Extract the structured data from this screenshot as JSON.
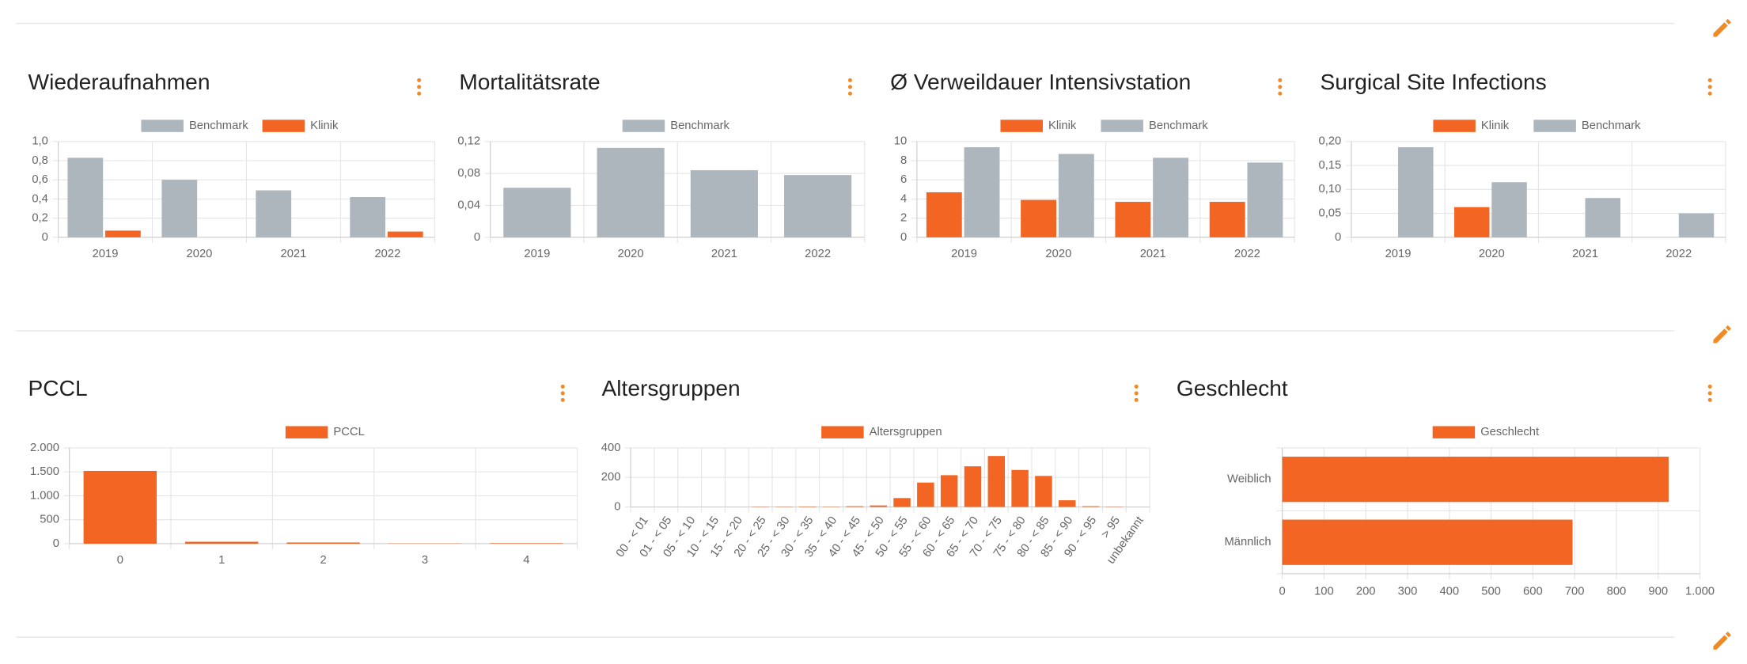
{
  "chart_data": [
    {
      "type": "bar",
      "title": "Wiederaufnahmen",
      "categories": [
        "2019",
        "2020",
        "2021",
        "2022"
      ],
      "series": [
        {
          "name": "Benchmark",
          "color": "#adb5bd",
          "values": [
            0.83,
            0.6,
            0.49,
            0.42
          ]
        },
        {
          "name": "Klinik",
          "color": "#f26522",
          "values": [
            0.07,
            0,
            0,
            0.06
          ]
        }
      ],
      "ylim": [
        0,
        1
      ],
      "yticks": [
        0,
        {
          "value": 0.2,
          "label": "0,2"
        },
        {
          "value": 0.4,
          "label": "0,4"
        },
        {
          "value": 0.6,
          "label": "0,6"
        },
        {
          "value": 0.8,
          "label": "0,8"
        },
        {
          "value": 1,
          "label": "1,0"
        }
      ],
      "grid": true
    },
    {
      "type": "bar",
      "title": "Mortalitätsrate",
      "categories": [
        "2019",
        "2020",
        "2021",
        "2022"
      ],
      "series": [
        {
          "name": "Benchmark",
          "color": "#adb5bd",
          "values": [
            0.062,
            0.112,
            0.084,
            0.078
          ]
        }
      ],
      "ylim": [
        0,
        0.12
      ],
      "yticks": [
        0,
        {
          "value": 0.04,
          "label": "0,04"
        },
        {
          "value": 0.08,
          "label": "0,08"
        },
        {
          "value": 0.12,
          "label": "0,12"
        }
      ],
      "grid": true
    },
    {
      "type": "bar",
      "title": "Ø Verweildauer Intensivstation",
      "categories": [
        "2019",
        "2020",
        "2021",
        "2022"
      ],
      "series": [
        {
          "name": "Klinik",
          "color": "#f26522",
          "values": [
            4.7,
            3.9,
            3.7,
            3.7
          ]
        },
        {
          "name": "Benchmark",
          "color": "#adb5bd",
          "values": [
            9.4,
            8.7,
            8.3,
            7.8
          ]
        }
      ],
      "ylim": [
        0,
        10
      ],
      "yticks": [
        0,
        2,
        4,
        6,
        8,
        10
      ],
      "grid": true
    },
    {
      "type": "bar",
      "title": "Surgical Site Infections",
      "categories": [
        "2019",
        "2020",
        "2021",
        "2022"
      ],
      "series": [
        {
          "name": "Klinik",
          "color": "#f26522",
          "values": [
            0,
            0.063,
            0,
            0
          ]
        },
        {
          "name": "Benchmark",
          "color": "#adb5bd",
          "values": [
            0.188,
            0.115,
            0.082,
            0.05
          ]
        }
      ],
      "ylim": [
        0,
        0.2
      ],
      "yticks": [
        0,
        {
          "value": 0.05,
          "label": "0,05"
        },
        {
          "value": 0.1,
          "label": "0,10"
        },
        {
          "value": 0.15,
          "label": "0,15"
        },
        {
          "value": 0.2,
          "label": "0,20"
        }
      ],
      "grid": true
    },
    {
      "type": "bar",
      "title": "PCCL",
      "categories": [
        "0",
        "1",
        "2",
        "3",
        "4"
      ],
      "series": [
        {
          "name": "PCCL",
          "color": "#f26522",
          "values": [
            1520,
            40,
            25,
            5,
            10
          ]
        }
      ],
      "ylim": [
        0,
        2000
      ],
      "yticks": [
        0,
        500,
        {
          "value": 1000,
          "label": "1.000"
        },
        {
          "value": 1500,
          "label": "1.500"
        },
        {
          "value": 2000,
          "label": "2.000"
        }
      ],
      "grid": true
    },
    {
      "type": "bar",
      "title": "Altersgruppen",
      "categories": [
        "00 - < 01",
        "01 - < 05",
        "05 - < 10",
        "10 - < 15",
        "15 - < 20",
        "20 - < 25",
        "25 - < 30",
        "30 - < 35",
        "35 - < 40",
        "40 - < 45",
        "45 - < 50",
        "50 - < 55",
        "55 - < 60",
        "60 - < 65",
        "65 - < 70",
        "70 - < 75",
        "75 - < 80",
        "80 - < 85",
        "85 - < 90",
        "90 - < 95",
        "> 95",
        "unbekannt"
      ],
      "series": [
        {
          "name": "Altersgruppen",
          "color": "#f26522",
          "values": [
            0,
            0,
            0,
            0,
            0,
            2,
            2,
            3,
            2,
            5,
            10,
            60,
            165,
            215,
            275,
            345,
            250,
            210,
            45,
            5,
            2,
            0
          ]
        }
      ],
      "ylim": [
        0,
        400
      ],
      "yticks": [
        0,
        200,
        400
      ],
      "grid": true
    },
    {
      "type": "barh",
      "title": "Geschlecht",
      "categories": [
        "Weiblich",
        "Männlich"
      ],
      "series": [
        {
          "name": "Geschlecht",
          "color": "#f26522",
          "values": [
            925,
            695
          ]
        }
      ],
      "xlim": [
        0,
        1000
      ],
      "xticks": [
        0,
        100,
        200,
        300,
        400,
        500,
        600,
        700,
        800,
        900,
        {
          "value": 1000,
          "label": "1.000"
        }
      ],
      "grid": true
    }
  ]
}
